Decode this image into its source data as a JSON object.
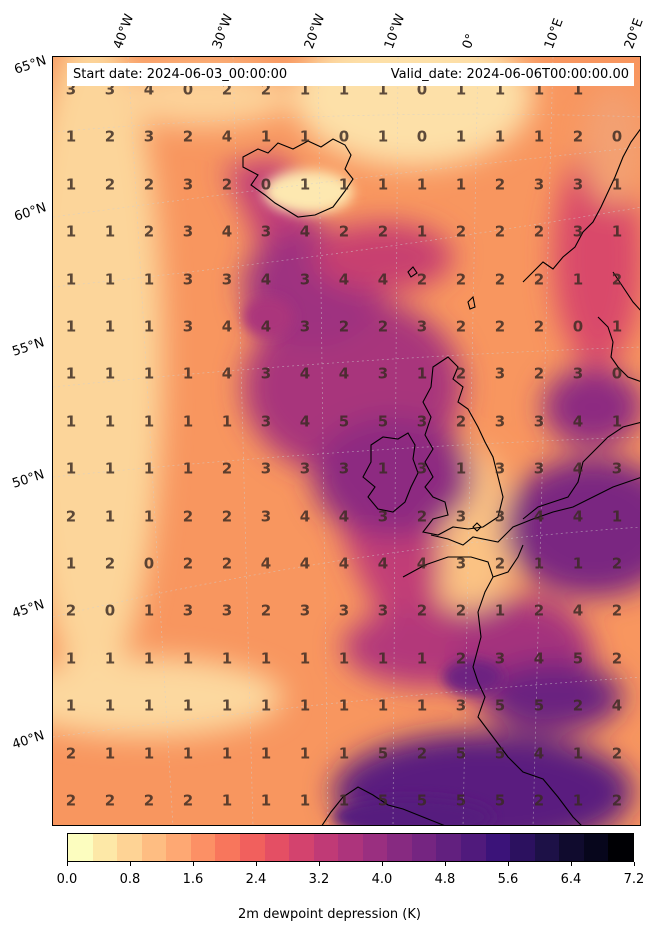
{
  "header": {
    "start_date": "Start date: 2024-06-03_00:00:00",
    "valid_date": "Valid_date: 2024-06-06T00:00:00.00"
  },
  "longitude_labels": [
    "40°W",
    "30°W",
    "20°W",
    "10°W",
    "0°",
    "10°E",
    "20°E"
  ],
  "latitude_labels": [
    "65°N",
    "60°N",
    "55°N",
    "50°N",
    "45°N",
    "40°N"
  ],
  "colorbar": {
    "label": "2m dewpoint depression (K)",
    "tick_labels": [
      "0.0",
      "0.8",
      "1.6",
      "2.4",
      "3.2",
      "4.0",
      "4.8",
      "5.6",
      "6.4",
      "7.2"
    ],
    "min": 0.0,
    "max": 7.2,
    "colors": [
      "#fcfdbf",
      "#fde8a7",
      "#fed395",
      "#febd82",
      "#fea873",
      "#fc9065",
      "#f8765c",
      "#f1605d",
      "#e44f64",
      "#d3436e",
      "#c03a76",
      "#ad347c",
      "#9a2f80",
      "#872a81",
      "#752581",
      "#62207f",
      "#501a7c",
      "#3b1379",
      "#2c115f",
      "#1d1147",
      "#100b2e",
      "#07061c",
      "#000004"
    ]
  },
  "grid_values": {
    "rows": [
      [
        "3",
        "3",
        "4",
        "0",
        "2",
        "2",
        "1",
        "1",
        "1",
        "0",
        "1",
        "1",
        "1",
        "1",
        ""
      ],
      [
        "1",
        "2",
        "3",
        "2",
        "4",
        "1",
        "1",
        "0",
        "1",
        "0",
        "1",
        "1",
        "1",
        "2",
        "0"
      ],
      [
        "1",
        "2",
        "2",
        "3",
        "2",
        "0",
        "1",
        "1",
        "1",
        "1",
        "1",
        "2",
        "3",
        "3",
        "1"
      ],
      [
        "1",
        "1",
        "2",
        "3",
        "4",
        "3",
        "4",
        "2",
        "2",
        "1",
        "2",
        "2",
        "2",
        "3",
        "1"
      ],
      [
        "1",
        "1",
        "1",
        "3",
        "3",
        "4",
        "3",
        "4",
        "4",
        "2",
        "2",
        "2",
        "2",
        "1",
        "2"
      ],
      [
        "1",
        "1",
        "1",
        "3",
        "4",
        "4",
        "3",
        "2",
        "2",
        "3",
        "2",
        "2",
        "2",
        "0",
        "1"
      ],
      [
        "1",
        "1",
        "1",
        "1",
        "4",
        "3",
        "4",
        "4",
        "3",
        "1",
        "2",
        "3",
        "2",
        "3",
        "0"
      ],
      [
        "1",
        "1",
        "1",
        "1",
        "1",
        "3",
        "4",
        "5",
        "5",
        "3",
        "2",
        "3",
        "3",
        "4",
        "1"
      ],
      [
        "1",
        "1",
        "1",
        "1",
        "2",
        "3",
        "3",
        "3",
        "1",
        "3",
        "1",
        "3",
        "3",
        "4",
        "3"
      ],
      [
        "2",
        "1",
        "1",
        "2",
        "2",
        "3",
        "4",
        "4",
        "3",
        "2",
        "3",
        "3",
        "4",
        "4",
        "1"
      ],
      [
        "1",
        "2",
        "0",
        "2",
        "2",
        "4",
        "4",
        "4",
        "4",
        "4",
        "3",
        "2",
        "1",
        "1",
        "2"
      ],
      [
        "2",
        "0",
        "1",
        "3",
        "3",
        "2",
        "3",
        "3",
        "3",
        "2",
        "2",
        "1",
        "2",
        "4",
        "2"
      ],
      [
        "1",
        "1",
        "1",
        "1",
        "1",
        "1",
        "1",
        "1",
        "1",
        "1",
        "2",
        "3",
        "4",
        "5",
        "2"
      ],
      [
        "1",
        "1",
        "1",
        "1",
        "1",
        "1",
        "1",
        "1",
        "1",
        "1",
        "3",
        "5",
        "5",
        "2",
        "4"
      ],
      [
        "2",
        "1",
        "1",
        "1",
        "1",
        "1",
        "1",
        "1",
        "5",
        "2",
        "5",
        "5",
        "4",
        "1",
        "2"
      ],
      [
        "2",
        "2",
        "2",
        "2",
        "1",
        "1",
        "1",
        "1",
        "5",
        "5",
        "5",
        "5",
        "2",
        "1",
        "2"
      ]
    ]
  }
}
